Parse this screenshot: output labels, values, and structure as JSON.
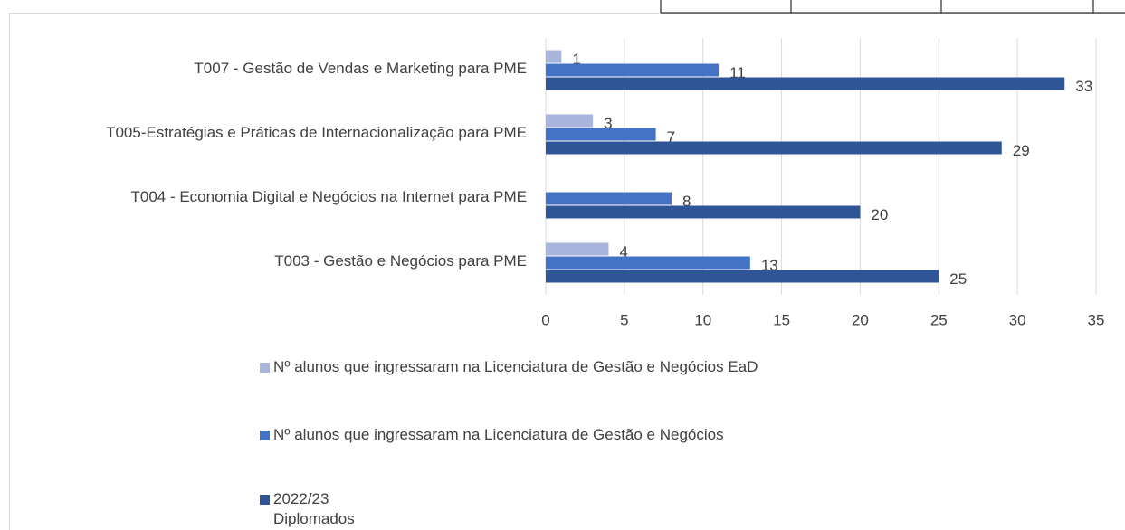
{
  "chart_data": {
    "type": "bar",
    "orientation": "horizontal",
    "categories": [
      "T007 - Gestão de Vendas e Marketing para PME",
      "T005-Estratégias e Práticas de Internacionalização para PME",
      "T004 - Economia Digital e Negócios na Internet para PME",
      "T003 - Gestão e Negócios para PME"
    ],
    "series": [
      {
        "name": "Nº alunos que ingressaram na Licenciatura de Gestão e Negócios EaD",
        "color": "#a9b4dc",
        "values": [
          1,
          3,
          null,
          4
        ]
      },
      {
        "name": "Nº alunos que ingressaram na Licenciatura de Gestão e Negócios",
        "color": "#4472c4",
        "values": [
          11,
          7,
          8,
          13
        ]
      },
      {
        "name": "2022/23 Diplomados",
        "color": "#2f5597",
        "values": [
          33,
          29,
          20,
          25
        ]
      }
    ],
    "xlim": [
      0,
      35
    ],
    "xticks": [
      0,
      5,
      10,
      15,
      20,
      25,
      30,
      35
    ],
    "grid": true
  }
}
